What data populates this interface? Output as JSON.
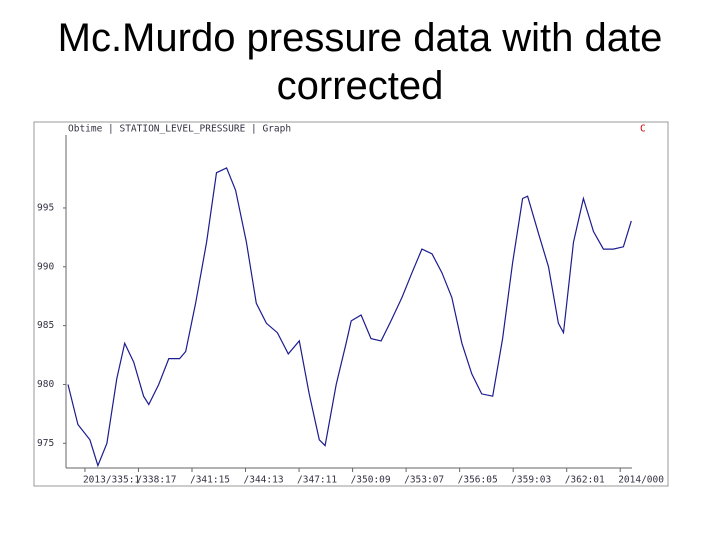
{
  "chart_data": {
    "type": "line",
    "title": "Mc.Murdo pressure data with date corrected",
    "annotations": [
      "Obtime | STATION_LEVEL_PRESSURE | Graph",
      "C"
    ],
    "x": [
      334.87,
      335.41,
      336.06,
      336.5,
      336.99,
      337.53,
      337.96,
      338.45,
      338.99,
      339.27,
      339.81,
      340.36,
      340.95,
      341.28,
      341.82,
      342.42,
      342.96,
      343.51,
      344.0,
      344.59,
      345.13,
      345.68,
      346.28,
      346.87,
      347.47,
      348.01,
      348.56,
      348.88,
      349.48,
      350.02,
      350.3,
      350.84,
      351.38,
      351.93,
      352.47,
      353.07,
      353.61,
      354.15,
      354.7,
      355.24,
      355.78,
      356.33,
      356.87,
      357.41,
      358.01,
      358.55,
      359.1,
      359.64,
      359.91,
      360.51,
      361.05,
      361.59,
      361.87,
      362.41,
      362.95,
      363.5,
      364.04,
      364.58,
      365.13,
      365.56
    ],
    "series": [
      {
        "color": "#1c1c8f",
        "values": [
          980.0,
          976.6,
          975.3,
          973.1,
          975.0,
          980.5,
          983.5,
          981.9,
          979.0,
          978.3,
          980.0,
          982.2,
          982.2,
          982.8,
          986.9,
          992.1,
          998.0,
          998.4,
          996.5,
          992.1,
          986.9,
          985.2,
          984.4,
          982.6,
          983.7,
          979.2,
          975.3,
          974.8,
          980.0,
          983.5,
          985.4,
          985.9,
          983.9,
          983.7,
          985.4,
          987.4,
          989.5,
          991.5,
          991.1,
          989.5,
          987.4,
          983.5,
          980.9,
          979.2,
          979.0,
          983.9,
          990.4,
          995.8,
          996.0,
          992.8,
          990.0,
          985.2,
          984.4,
          992.1,
          995.8,
          993.0,
          991.5,
          991.5,
          991.7,
          993.9
        ]
      }
    ],
    "xlim": [
      334.76,
      365.6
    ],
    "xticks": [
      {
        "value": 335.792,
        "label": "2013/335:1"
      },
      {
        "value": 338.708,
        "label": "/338:17"
      },
      {
        "value": 341.625,
        "label": "/341:15"
      },
      {
        "value": 344.542,
        "label": "/344:13"
      },
      {
        "value": 347.458,
        "label": "/347:11"
      },
      {
        "value": 350.375,
        "label": "/350:09"
      },
      {
        "value": 353.292,
        "label": "/353:07"
      },
      {
        "value": 356.208,
        "label": "/356:05"
      },
      {
        "value": 359.125,
        "label": "/359:03"
      },
      {
        "value": 362.042,
        "label": "/362:01"
      },
      {
        "value": 364.958,
        "label": "2014/000"
      }
    ],
    "ylim": [
      972.9,
      1001.2
    ],
    "yticks": [
      975,
      980,
      985,
      990,
      995
    ],
    "grid": false
  }
}
